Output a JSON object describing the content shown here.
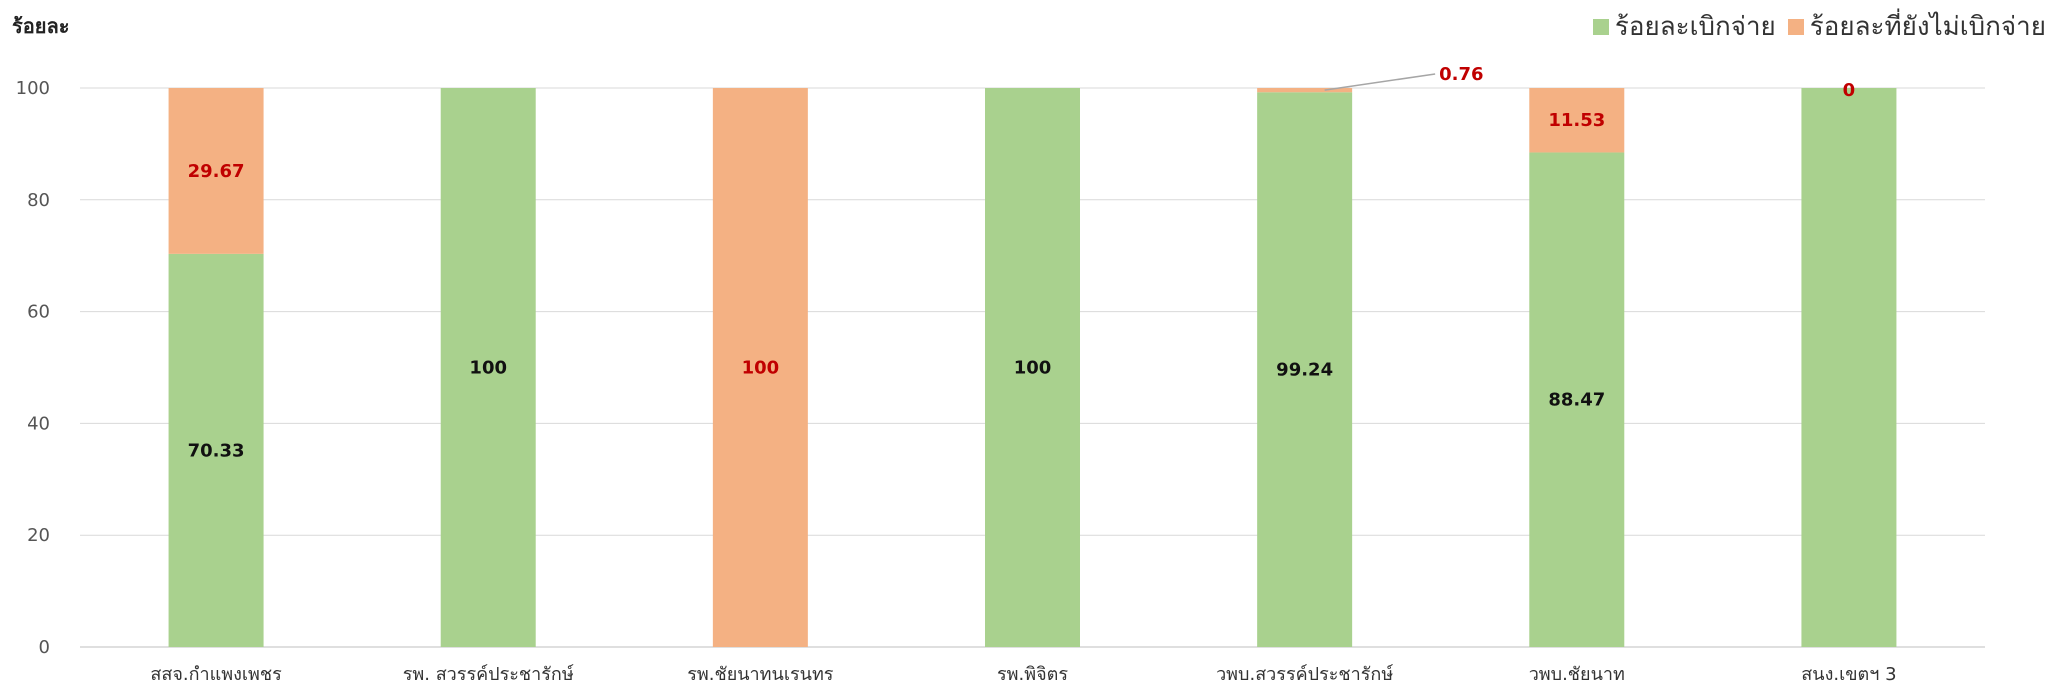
{
  "chart_data": {
    "type": "bar",
    "stacked": true,
    "title": "",
    "xlabel": "",
    "ylabel": "ร้อยละ",
    "ylim": [
      0,
      100
    ],
    "yticks": [
      0,
      20,
      40,
      60,
      80,
      100
    ],
    "grid": true,
    "legend_position": "top-right",
    "categories": [
      "สสจ.กำแพงเพชร",
      "รพ. สวรรค์ประชารักษ์",
      "รพ.ชัยนาทนเรนทร",
      "รพ.พิจิตร",
      "วพบ.สวรรค์ประชารักษ์",
      "วพบ.ชัยนาท",
      "สนง.เขตฯ 3"
    ],
    "series": [
      {
        "name": "ร้อยละเบิกจ่าย",
        "color": "#a9d18e",
        "label_color": "#111111",
        "values": [
          70.33,
          100,
          0,
          100,
          99.24,
          88.47,
          100
        ],
        "labels": [
          "70.33",
          "100",
          "",
          "100",
          "99.24",
          "88.47",
          ""
        ]
      },
      {
        "name": "ร้อยละที่ยังไม่เบิกจ่าย",
        "color": "#f4b183",
        "label_color": "#c00000",
        "values": [
          29.67,
          0,
          100,
          0,
          0.76,
          11.53,
          0
        ],
        "labels": [
          "29.67",
          "",
          "100",
          "",
          "0.76",
          "11.53",
          "0"
        ]
      }
    ]
  }
}
